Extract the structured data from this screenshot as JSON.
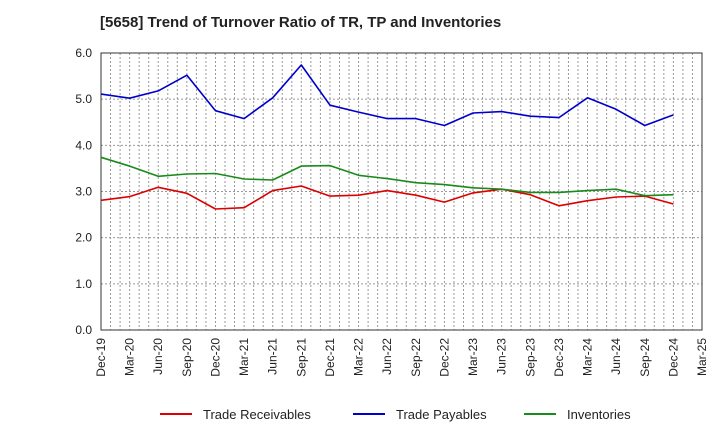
{
  "chart_data": {
    "type": "line",
    "title": "[5658]  Trend of Turnover Ratio of TR, TP and Inventories",
    "xlabel": "",
    "ylabel": "",
    "ylim": [
      0.0,
      6.0
    ],
    "y_ticks": [
      "0.0",
      "1.0",
      "2.0",
      "3.0",
      "4.0",
      "5.0",
      "6.0"
    ],
    "x_ticks": [
      "Dec-19",
      "Mar-20",
      "Jun-20",
      "Sep-20",
      "Dec-20",
      "Mar-21",
      "Jun-21",
      "Sep-21",
      "Dec-21",
      "Mar-22",
      "Jun-22",
      "Sep-22",
      "Dec-22",
      "Mar-23",
      "Jun-23",
      "Sep-23",
      "Dec-23",
      "Mar-24",
      "Jun-24",
      "Sep-24",
      "Dec-24",
      "Mar-25"
    ],
    "categories": [
      "Dec-19",
      "Mar-20",
      "Jun-20",
      "Sep-20",
      "Dec-20",
      "Mar-21",
      "Jun-21",
      "Sep-21",
      "Dec-21",
      "Mar-22",
      "Jun-22",
      "Sep-22",
      "Dec-22",
      "Mar-23",
      "Jun-23",
      "Sep-23",
      "Dec-23",
      "Mar-24",
      "Jun-24",
      "Sep-24",
      "Dec-24"
    ],
    "grid": true,
    "legend_position": "bottom",
    "series": [
      {
        "name": "Trade Receivables",
        "color": "#dd0000",
        "values": [
          2.81,
          2.89,
          3.09,
          2.96,
          2.62,
          2.65,
          3.02,
          3.12,
          2.9,
          2.92,
          3.02,
          2.92,
          2.77,
          2.97,
          3.05,
          2.93,
          2.69,
          2.8,
          2.88,
          2.9,
          2.73
        ]
      },
      {
        "name": "Trade Payables",
        "color": "#0000cc",
        "values": [
          5.11,
          5.02,
          5.18,
          5.52,
          4.75,
          4.58,
          5.03,
          5.74,
          4.87,
          4.72,
          4.58,
          4.58,
          4.43,
          4.7,
          4.73,
          4.63,
          4.6,
          5.03,
          4.78,
          4.43,
          4.66
        ]
      },
      {
        "name": "Inventories",
        "color": "#1a8a1a",
        "values": [
          3.74,
          3.55,
          3.33,
          3.38,
          3.39,
          3.27,
          3.25,
          3.55,
          3.56,
          3.35,
          3.28,
          3.19,
          3.15,
          3.08,
          3.05,
          2.98,
          2.98,
          3.02,
          3.05,
          2.91,
          2.93
        ]
      }
    ]
  }
}
